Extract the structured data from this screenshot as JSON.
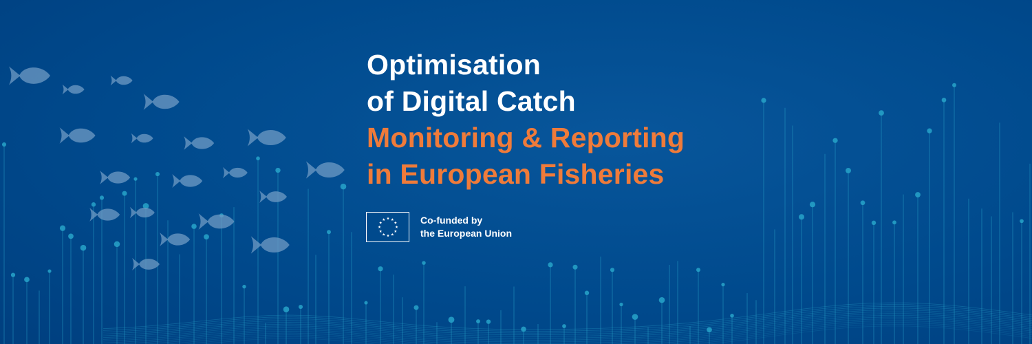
{
  "banner": {
    "title_line_1": "Optimisation",
    "title_line_2": "of Digital Catch",
    "highlight_line_1": "Monitoring & Reporting",
    "highlight_line_2": "in European Fisheries",
    "eu_label_line_1": "Co-funded by",
    "eu_label_line_2": "the European Union"
  },
  "icons": {
    "flag": "eu-flag-icon",
    "fish": "fish-icon"
  },
  "colors": {
    "background": "#004a8d",
    "title": "#ffffff",
    "highlight": "#ef7b3a",
    "accent": "#27a3c9",
    "fish": "#6f9bc4"
  }
}
